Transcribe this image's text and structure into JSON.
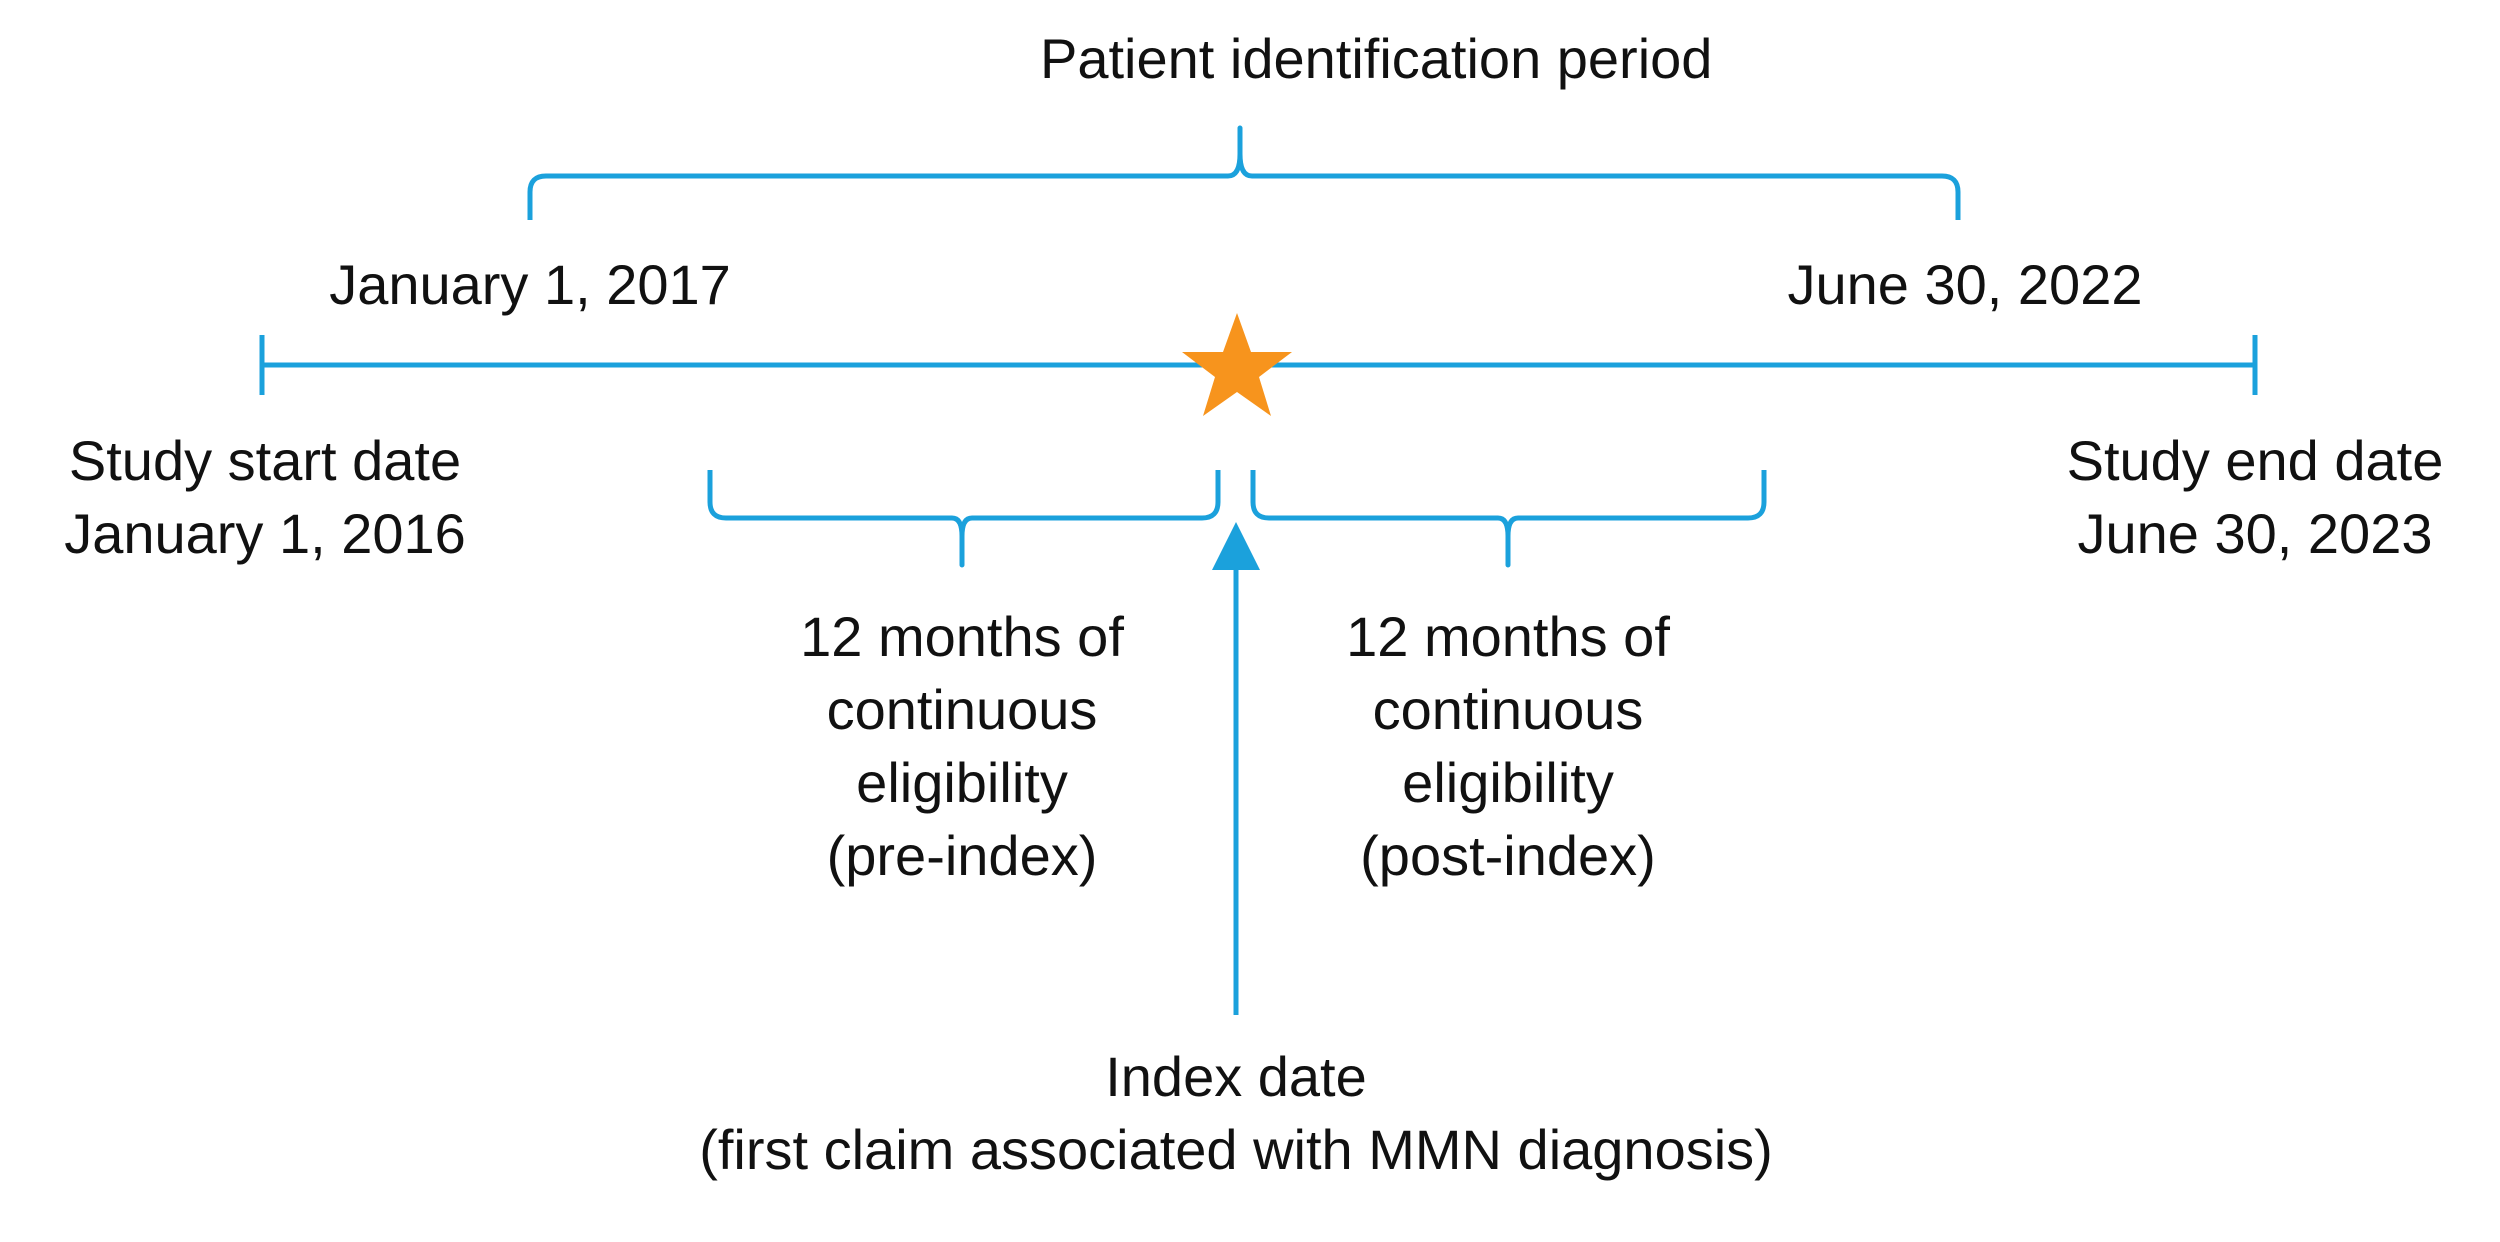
{
  "title": "Patient identification period",
  "identification_start": "January 1, 2017",
  "identification_end": "June 30, 2022",
  "study_start": {
    "line1": "Study start date",
    "line2": "January 1, 2016"
  },
  "study_end": {
    "line1": "Study end date",
    "line2": "June 30, 2023"
  },
  "pre_index": {
    "line1": "12 months of",
    "line2": "continuous",
    "line3": "eligibility",
    "line4": "(pre-index)"
  },
  "post_index": {
    "line1": "12 months of",
    "line2": "continuous",
    "line3": "eligibility",
    "line4": "(post-index)"
  },
  "index_date": {
    "line1": "Index date",
    "line2": "(first claim associated with MMN diagnosis)"
  },
  "colors": {
    "line": "#1ba1dc",
    "star": "#f7941d",
    "text": "#111111"
  }
}
